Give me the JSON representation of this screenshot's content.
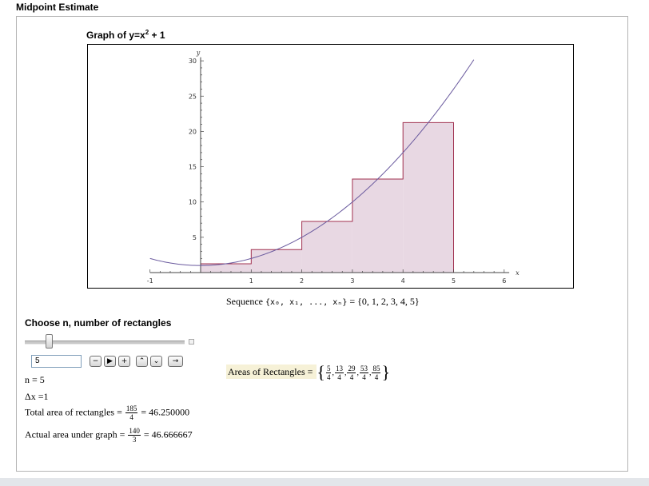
{
  "app": {
    "title": "Midpoint Estimate"
  },
  "graph": {
    "title_prefix": "Graph of y=x",
    "title_exponent": "2",
    "title_suffix": " + 1",
    "x_tick_labels": [
      "-1",
      "1",
      "2",
      "3",
      "4",
      "5",
      "6"
    ],
    "y_tick_labels": [
      "5",
      "10",
      "15",
      "20",
      "25",
      "30"
    ],
    "x_axis_var": "x",
    "y_axis_var": "y",
    "curve_color": "#6a5a9e",
    "rect_fill": "#e8d8e3",
    "rect_stroke": "#a0304f"
  },
  "chart_data": {
    "type": "line",
    "title": "Graph of y=x² + 1",
    "xlabel": "x",
    "ylabel": "y",
    "xlim": [
      -1,
      6
    ],
    "ylim": [
      0,
      30
    ],
    "x_ticks": [
      -1,
      1,
      2,
      3,
      4,
      5,
      6
    ],
    "y_ticks": [
      5,
      10,
      15,
      20,
      25,
      30
    ],
    "function": "x^2 + 1",
    "curve_domain": [
      -1,
      5.4
    ],
    "rectangles": [
      {
        "x0": 0,
        "x1": 1,
        "height": 1.25
      },
      {
        "x0": 1,
        "x1": 2,
        "height": 3.25
      },
      {
        "x0": 2,
        "x1": 3,
        "height": 7.25
      },
      {
        "x0": 3,
        "x1": 4,
        "height": 13.25
      },
      {
        "x0": 4,
        "x1": 5,
        "height": 21.25
      }
    ],
    "grid": false
  },
  "sequence": {
    "label": "Sequence",
    "vars": "{x₀, x₁, ..., xₙ}",
    "equals": " = ",
    "values": "{0, 1, 2, 3, 4, 5}"
  },
  "controls": {
    "heading": "Choose n, number of rectangles",
    "slider_fraction": 0.08,
    "n_input_value": "5",
    "buttons": {
      "step_back": "−",
      "play": "▶",
      "step_forward": "+",
      "faster": "⌃",
      "slower": "⌄",
      "direction": "→"
    }
  },
  "info": {
    "n_text": "n = 5",
    "dx_text": "Δx =1",
    "total_label": "Total area of rectangles = ",
    "total_num": "185",
    "total_den": "4",
    "total_value": " = 46.250000",
    "actual_label": "Actual area under graph = ",
    "actual_num": "140",
    "actual_den": "3",
    "actual_value": " = 46.666667"
  },
  "areas": {
    "label": "Areas of Rectangles = ",
    "open_brace": "{",
    "close_brace": "}",
    "fractions": [
      {
        "num": "5",
        "den": "4"
      },
      {
        "num": "13",
        "den": "4"
      },
      {
        "num": "29",
        "den": "4"
      },
      {
        "num": "53",
        "den": "4"
      },
      {
        "num": "85",
        "den": "4"
      }
    ]
  }
}
